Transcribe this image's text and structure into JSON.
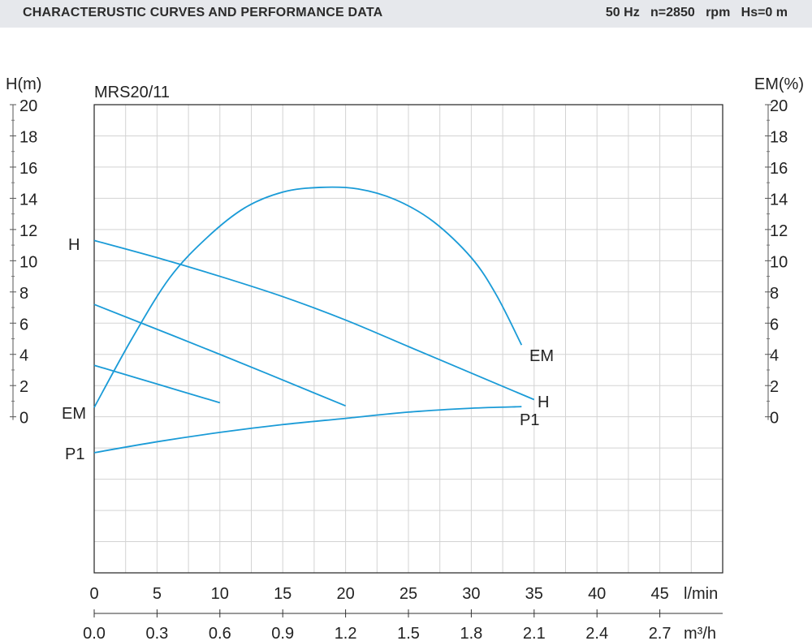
{
  "header": {
    "title": "CHARACTERUSTIC CURVES AND PERFORMANCE DATA",
    "info": "50 Hz   n=2850   rpm   Hs=0 m"
  },
  "chart_data": {
    "type": "line",
    "model": "MRS20/11",
    "y_left_label": "H(m)",
    "y_right_label": "EM(%)",
    "x_unit_lmin": "l/min",
    "x_unit_m3h": "m³/h",
    "x_ticks_lmin": [
      "0",
      "5",
      "10",
      "15",
      "20",
      "25",
      "30",
      "35",
      "40",
      "45"
    ],
    "x_ticks_m3h": [
      "0.0",
      "0.3",
      "0.6",
      "0.9",
      "1.2",
      "1.5",
      "1.8",
      "2.1",
      "2.4",
      "2.7"
    ],
    "y_ticks": [
      "0",
      "2",
      "4",
      "6",
      "8",
      "10",
      "12",
      "14",
      "16",
      "18",
      "20"
    ],
    "xlim": [
      0,
      50
    ],
    "ylim": [
      -10,
      20
    ],
    "grid": true,
    "curve_color": "#1a9bd7",
    "series": [
      {
        "name": "H",
        "label": "H",
        "x": [
          0,
          5,
          10,
          15,
          20,
          25,
          30,
          35
        ],
        "y": [
          11.3,
          10.2,
          9.0,
          7.7,
          6.2,
          4.5,
          2.8,
          1.1
        ]
      },
      {
        "name": "EM",
        "label": "EM",
        "x": [
          0,
          3,
          6,
          9,
          12,
          15,
          18,
          21,
          24,
          27,
          30,
          32,
          34
        ],
        "y": [
          0.6,
          5.0,
          8.9,
          11.5,
          13.4,
          14.4,
          14.7,
          14.6,
          13.9,
          12.5,
          10.2,
          7.8,
          4.6
        ]
      },
      {
        "name": "P1",
        "label": "P1",
        "x": [
          0,
          5,
          10,
          15,
          20,
          25,
          30,
          34
        ],
        "y": [
          -2.3,
          -1.6,
          -1.0,
          -0.5,
          -0.1,
          0.3,
          0.55,
          0.65
        ]
      },
      {
        "name": "",
        "label": "",
        "x": [
          0,
          10,
          20
        ],
        "y": [
          7.2,
          4.0,
          0.7
        ]
      },
      {
        "name": "",
        "label": "",
        "x": [
          0,
          5,
          10
        ],
        "y": [
          3.3,
          2.1,
          0.9
        ]
      }
    ]
  }
}
